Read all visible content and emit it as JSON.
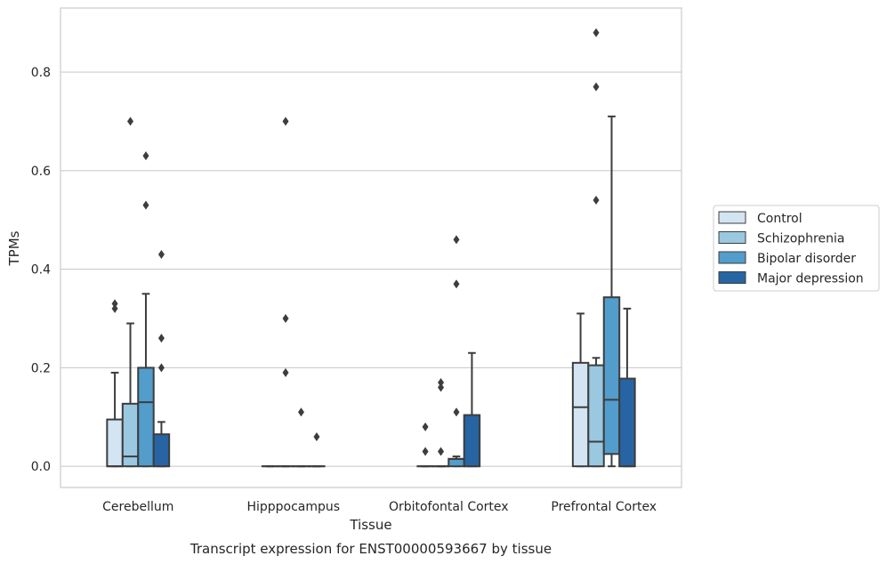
{
  "chart_data": {
    "type": "boxplot",
    "title": "",
    "caption": "Transcript expression for ENST00000593667 by tissue",
    "xlabel": "Tissue",
    "ylabel": "TPMs",
    "ylim": [
      -0.043,
      0.93
    ],
    "yticks": [
      "0.0",
      "0.2",
      "0.4",
      "0.6",
      "0.8"
    ],
    "grid": "horizontal",
    "legend_position": "right",
    "categories": [
      "Cerebellum",
      "Hipppocampus",
      "Orbitofontal Cortex",
      "Prefrontal Cortex"
    ],
    "series": [
      {
        "name": "Control",
        "color": "#d3e4f3",
        "boxes": [
          {
            "min": 0,
            "q1": 0,
            "median": 0,
            "q3": 0.095,
            "max": 0.19,
            "outliers": [
              0.32,
              0.33
            ]
          },
          {
            "min": 0,
            "q1": 0,
            "median": 0,
            "q3": 0,
            "max": 0,
            "outliers": []
          },
          {
            "min": 0,
            "q1": 0,
            "median": 0,
            "q3": 0,
            "max": 0,
            "outliers": [
              0.03,
              0.08
            ]
          },
          {
            "min": 0,
            "q1": 0,
            "median": 0.12,
            "q3": 0.21,
            "max": 0.31,
            "outliers": []
          }
        ]
      },
      {
        "name": "Schizophrenia",
        "color": "#9ac8e0",
        "boxes": [
          {
            "min": 0,
            "q1": 0,
            "median": 0.02,
            "q3": 0.127,
            "max": 0.29,
            "outliers": [
              0.7
            ]
          },
          {
            "min": 0,
            "q1": 0,
            "median": 0,
            "q3": 0,
            "max": 0,
            "outliers": [
              0.19,
              0.3,
              0.7
            ]
          },
          {
            "min": 0,
            "q1": 0,
            "median": 0,
            "q3": 0,
            "max": 0,
            "outliers": [
              0.03,
              0.16,
              0.17
            ]
          },
          {
            "min": 0,
            "q1": 0,
            "median": 0.05,
            "q3": 0.205,
            "max": 0.22,
            "outliers": [
              0.54,
              0.77,
              0.88
            ]
          }
        ]
      },
      {
        "name": "Bipolar disorder",
        "color": "#529dcc",
        "boxes": [
          {
            "min": 0,
            "q1": 0,
            "median": 0.13,
            "q3": 0.2,
            "max": 0.35,
            "outliers": [
              0.53,
              0.63
            ]
          },
          {
            "min": 0,
            "q1": 0,
            "median": 0,
            "q3": 0,
            "max": 0,
            "outliers": [
              0.11
            ]
          },
          {
            "min": 0,
            "q1": 0,
            "median": 0.015,
            "q3": 0.015,
            "max": 0.02,
            "outliers": [
              0.11,
              0.37,
              0.46
            ]
          },
          {
            "min": 0,
            "q1": 0.025,
            "median": 0.135,
            "q3": 0.343,
            "max": 0.71,
            "outliers": []
          }
        ]
      },
      {
        "name": "Major depression",
        "color": "#2764a4",
        "boxes": [
          {
            "min": 0,
            "q1": 0,
            "median": 0,
            "q3": 0.065,
            "max": 0.09,
            "outliers": [
              0.2,
              0.26,
              0.43
            ]
          },
          {
            "min": 0,
            "q1": 0,
            "median": 0,
            "q3": 0,
            "max": 0,
            "outliers": [
              0.06
            ]
          },
          {
            "min": 0,
            "q1": 0,
            "median": 0,
            "q3": 0.104,
            "max": 0.23,
            "outliers": []
          },
          {
            "min": 0,
            "q1": 0,
            "median": 0,
            "q3": 0.178,
            "max": 0.32,
            "outliers": []
          }
        ]
      }
    ]
  }
}
